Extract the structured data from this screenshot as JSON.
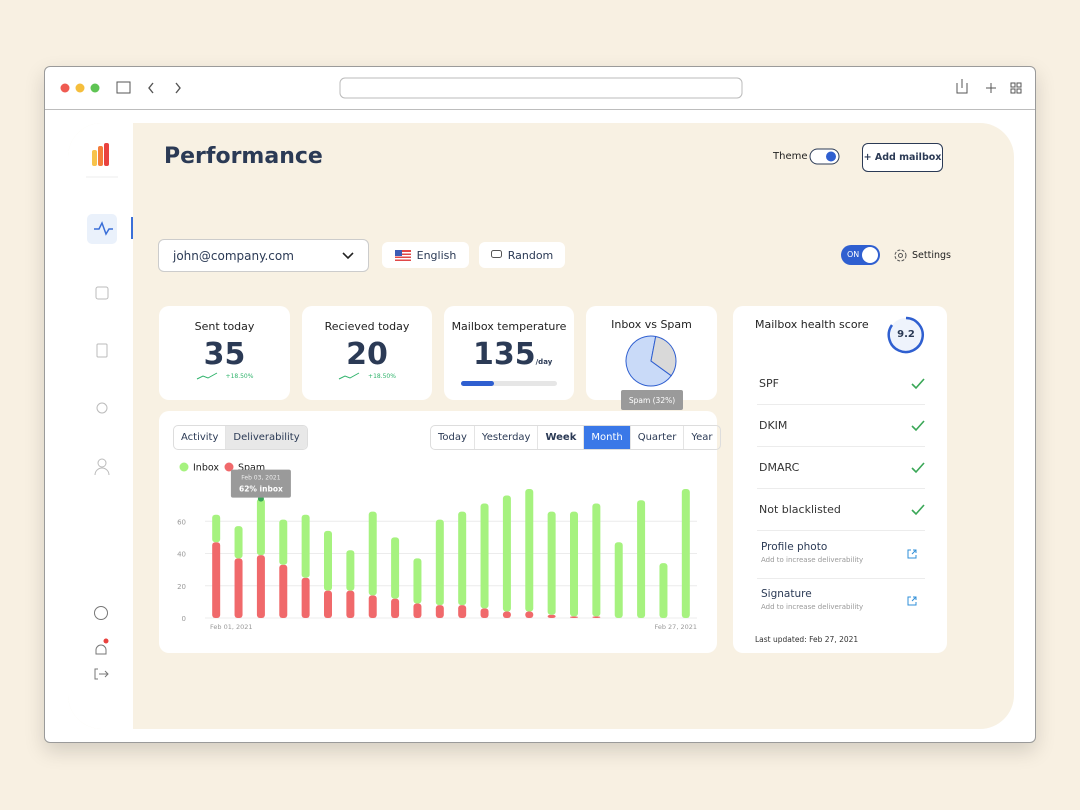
{
  "header": {
    "title": "Performance",
    "theme_label": "Theme",
    "add_button": "+ Add mailbox"
  },
  "toolbar": {
    "email": "john@company.com",
    "language": "English",
    "mode": "Random",
    "toggle": "ON",
    "settings": "Settings"
  },
  "stats": [
    {
      "label": "Sent today",
      "value": 35,
      "change": "+18.50%"
    },
    {
      "label": "Recieved today",
      "value": 20,
      "change": "+18.50%"
    },
    {
      "label": "Mailbox temperature",
      "value": 135,
      "unit": "/day"
    }
  ],
  "inbox_vs_spam": {
    "title": "Inbox vs Spam",
    "values": [
      68,
      32
    ],
    "value_labels": [
      null,
      "Spam (32%)"
    ],
    "colors": [
      "#c9daf8",
      "#d9d9d9"
    ]
  },
  "health": {
    "title": "Mailbox health score",
    "score": 9.2,
    "checks": [
      "SPF",
      "DKIM",
      "DMARC",
      "Not blacklisted"
    ],
    "actions": [
      {
        "title": "Profile photo",
        "hint": "Add to increase deliverability"
      },
      {
        "title": "Signature",
        "hint": "Add to increase deliverability"
      }
    ],
    "updated": "Last updated: Feb 27, 2021"
  },
  "chart_tabs": [
    "Activity",
    "Deliverability"
  ],
  "periods": [
    "Today",
    "Yesterday",
    "Week",
    "Month",
    "Quarter",
    "Year"
  ],
  "chart_data": {
    "type": "bar",
    "stacked": true,
    "categories": [
      "Feb 01, 2021",
      null,
      null,
      null,
      null,
      null,
      null,
      null,
      null,
      null,
      null,
      null,
      null,
      null,
      null,
      null,
      null,
      null,
      null,
      null,
      null,
      "Feb 27, 2021"
    ],
    "series": [
      {
        "name": "Inbox",
        "color": "#a6f27f",
        "values": [
          17,
          20,
          35,
          28,
          39,
          37,
          25,
          52,
          38,
          28,
          53,
          58,
          65,
          72,
          76,
          64,
          65,
          70,
          47,
          73,
          34,
          80
        ]
      },
      {
        "name": "Spam",
        "color": "#f0696b",
        "values": [
          47,
          37,
          39,
          33,
          25,
          17,
          17,
          14,
          12,
          9,
          8,
          8,
          6,
          4,
          4,
          2,
          1,
          1,
          0,
          0,
          0,
          0
        ]
      }
    ],
    "ylim": [
      0,
      80
    ],
    "yticks": [
      0,
      20,
      40,
      60
    ],
    "grid": true,
    "tooltip": {
      "date": "Feb 03, 2021",
      "text": "62% inbox"
    }
  }
}
